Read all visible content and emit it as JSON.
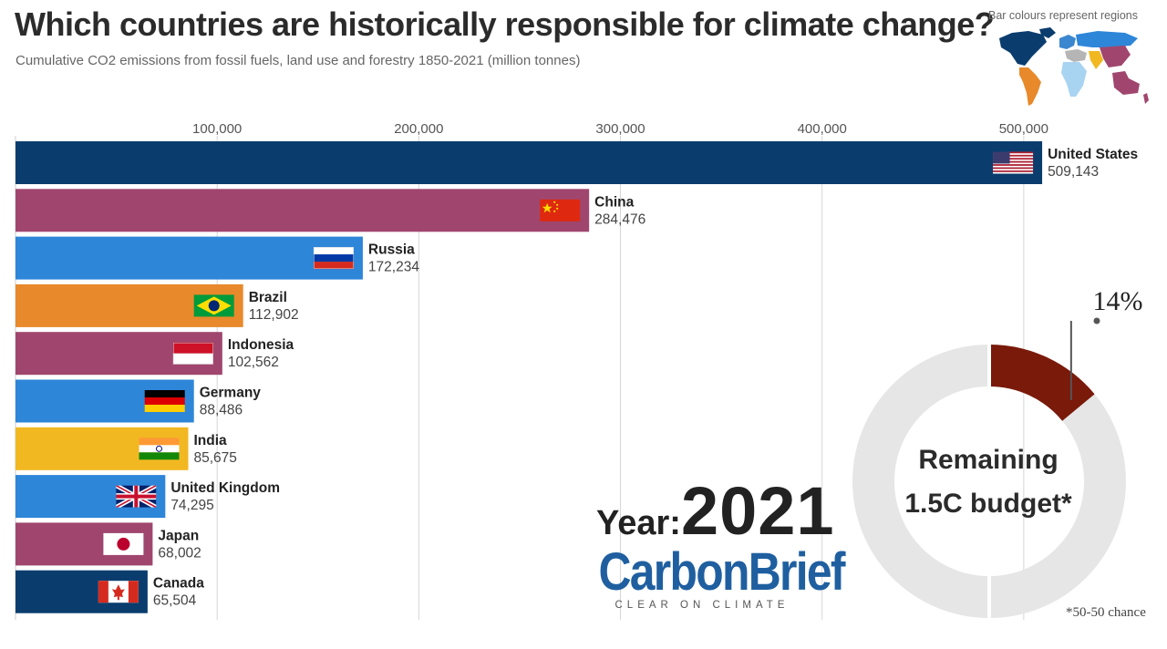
{
  "header": {
    "title": "Which countries are historically responsible for climate change?",
    "subtitle": "Cumulative CO2 emissions from fossil fuels, land use and forestry 1850-2021 (million tonnes)"
  },
  "map": {
    "note": "Bar colours represent regions",
    "region_colors": {
      "north_america": "#0a3d6e",
      "latin_america": "#e8892b",
      "europe": "#3a87d0",
      "former_ussr": "#2e86d9",
      "africa": "#a8d4f2",
      "middle_east": "#b5b5b5",
      "asia": "#a0466e",
      "south_asia": "#f2b822",
      "oceania": "#a0466e"
    }
  },
  "chart_data": {
    "type": "bar",
    "orientation": "horizontal",
    "title": "Which countries are historically responsible for climate change?",
    "subtitle": "Cumulative CO2 emissions from fossil fuels, land use and forestry 1850-2021 (million tonnes)",
    "x_ticks": [
      100000,
      200000,
      300000,
      400000,
      500000
    ],
    "x_tick_labels": [
      "100,000",
      "200,000",
      "300,000",
      "400,000",
      "500,000"
    ],
    "xlim": [
      0,
      520000
    ],
    "grid": true,
    "categories": [
      "United States",
      "China",
      "Russia",
      "Brazil",
      "Indonesia",
      "Germany",
      "India",
      "United Kingdom",
      "Japan",
      "Canada"
    ],
    "values": [
      509143,
      284476,
      172234,
      112902,
      102562,
      88486,
      85675,
      74295,
      68002,
      65504
    ],
    "value_labels": [
      "509,143",
      "284,476",
      "172,234",
      "112,902",
      "102,562",
      "88,486",
      "85,675",
      "74,295",
      "68,002",
      "65,504"
    ],
    "bar_colors": [
      "#0a3d6e",
      "#a0466e",
      "#2e86d9",
      "#e8892b",
      "#a0466e",
      "#2e86d9",
      "#f2b822",
      "#2e86d9",
      "#a0466e",
      "#0a3d6e"
    ],
    "flags": [
      "us-flag-icon",
      "china-flag-icon",
      "russia-flag-icon",
      "brazil-flag-icon",
      "indonesia-flag-icon",
      "germany-flag-icon",
      "india-flag-icon",
      "uk-flag-icon",
      "japan-flag-icon",
      "canada-flag-icon"
    ]
  },
  "year": {
    "label": "Year:",
    "value": "2021"
  },
  "logo": {
    "main": "CarbonBrief",
    "tagline": "CLEAR ON CLIMATE"
  },
  "budget": {
    "label_line1": "Remaining",
    "label_line2": "1.5C budget*",
    "percent_used": 14,
    "percent_label": "14%",
    "used_color": "#7a1a0a",
    "remaining_color": "#e6e6e6",
    "footnote": "*50-50 chance"
  }
}
